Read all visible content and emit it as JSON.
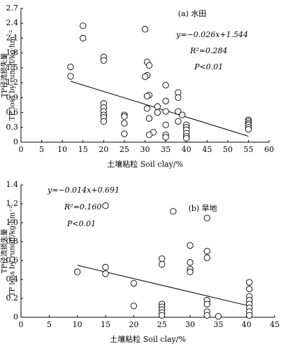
{
  "chart_data": [
    {
      "type": "scatter",
      "title": "(a) 水田",
      "annotations": [
        "y=−0.026x+1.544",
        "R²=0.284",
        "P<0.01"
      ],
      "xlabel": "土壤粘粒 Soil clay/%",
      "ylabel": [
        "TP径流损失量",
        "TP loss by runoff/kg·hm⁻²"
      ],
      "xlim": [
        0,
        60
      ],
      "xticks": [
        0,
        5,
        10,
        15,
        20,
        25,
        30,
        35,
        40,
        45,
        50,
        55,
        60
      ],
      "ylim": [
        0,
        2.7
      ],
      "yticks": [
        0,
        0.3,
        0.6,
        0.9,
        1.2,
        1.5,
        1.8,
        2.1,
        2.4,
        2.7
      ],
      "series": [
        {
          "color": "#000000",
          "x": [
            12,
            12,
            15,
            15,
            20,
            20,
            20,
            20,
            20,
            20,
            20,
            20,
            25,
            25,
            25,
            25,
            30,
            30.5,
            31,
            30.5,
            30,
            31,
            30.5,
            30.5,
            31,
            32,
            31,
            33,
            33,
            35,
            35,
            35,
            35,
            35,
            35,
            38,
            38,
            38,
            38,
            40,
            40,
            40,
            40,
            40,
            40,
            39,
            55,
            55,
            55,
            55,
            55,
            55
          ],
          "values": [
            1.52,
            1.33,
            2.35,
            2.1,
            1.72,
            1.65,
            0.78,
            0.7,
            0.62,
            0.55,
            0.5,
            0.42,
            0.55,
            0.52,
            0.38,
            0.17,
            2.28,
            1.62,
            1.55,
            1.35,
            1.32,
            0.95,
            0.93,
            0.68,
            0.48,
            0.2,
            0.15,
            0.72,
            0.6,
            1.15,
            0.83,
            0.62,
            0.35,
            0.15,
            0.1,
            1.0,
            0.9,
            0.62,
            0.42,
            0.35,
            0.3,
            0.25,
            0.18,
            0.12,
            0.08,
            0.55,
            0.45,
            0.42,
            0.38,
            0.35,
            0.3,
            0.26
          ]
        }
      ],
      "trendline": {
        "x": [
          12,
          55
        ],
        "values": [
          1.23,
          0.12
        ]
      }
    },
    {
      "type": "scatter",
      "title": "(b) 旱地",
      "annotations": [
        "y=−0.014x+0.691",
        "R²=0.160",
        "P<0.01"
      ],
      "xlabel": "土壤粘粒 Soil clay/%",
      "ylabel": [
        "TP径流损失量",
        "TP loss by runoff/kg·hm⁻²"
      ],
      "xlim": [
        0,
        45
      ],
      "xticks": [
        0,
        5,
        10,
        15,
        20,
        25,
        30,
        35,
        40,
        45
      ],
      "ylim": [
        0,
        1.4
      ],
      "yticks": [
        0,
        0.2,
        0.4,
        0.6,
        0.8,
        {
          "value": 1,
          "label": "1.0"
        },
        1.2,
        1.4
      ],
      "series": [
        {
          "color": "#000000",
          "x": [
            10,
            15,
            15,
            15,
            20,
            20,
            25,
            25,
            25,
            25,
            25,
            25,
            25,
            27,
            30,
            30,
            30,
            30,
            33,
            33,
            33,
            33,
            33,
            33,
            33,
            35,
            40.5,
            40.5,
            40.5,
            40.5,
            40.5,
            40.5,
            40.5,
            40.5
          ],
          "values": [
            0.48,
            1.18,
            0.53,
            0.46,
            0.36,
            0.12,
            0.62,
            0.56,
            0.14,
            0.11,
            0.08,
            0.05,
            0.02,
            1.12,
            0.76,
            0.58,
            0.51,
            0.48,
            1.05,
            0.7,
            0.63,
            0.18,
            0.14,
            0.06,
            0.02,
            0.01,
            0.37,
            0.3,
            0.22,
            0.18,
            0.14,
            0.1,
            0.06,
            0.02
          ]
        }
      ],
      "trendline": {
        "x": [
          10,
          40.5
        ],
        "values": [
          0.55,
          0.12
        ]
      }
    }
  ]
}
